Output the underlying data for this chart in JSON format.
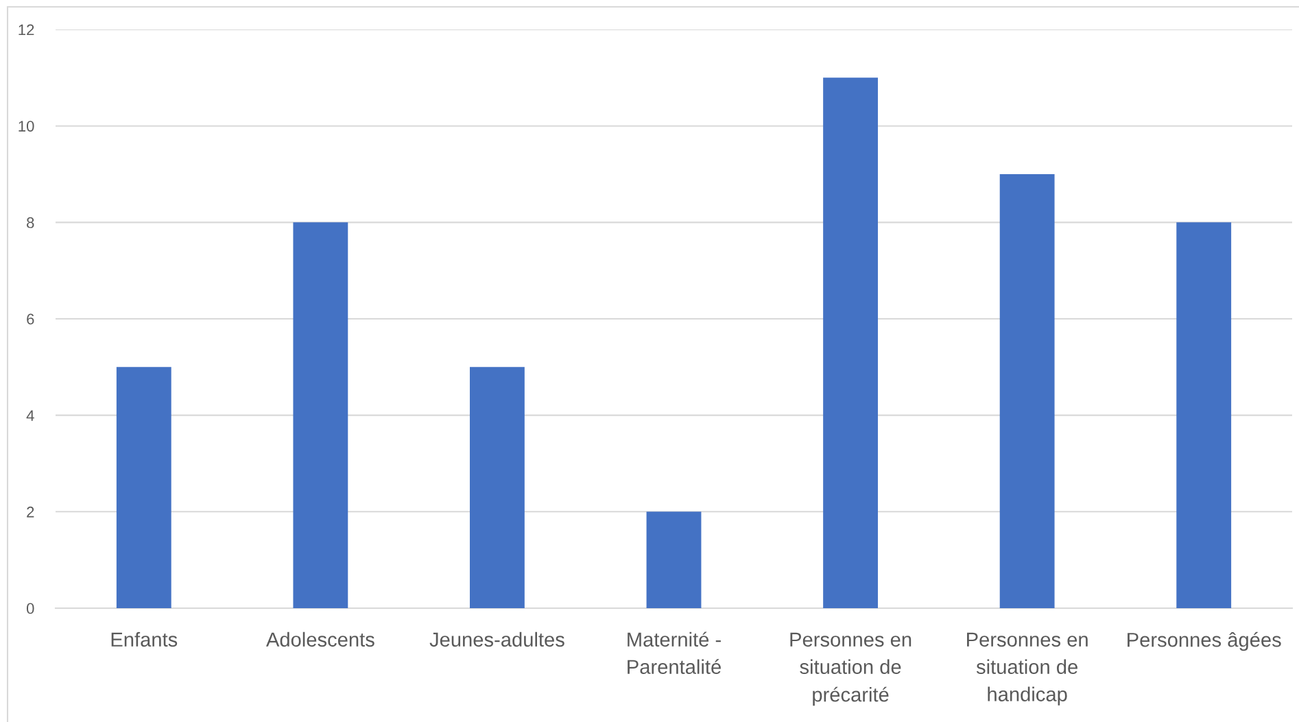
{
  "chart_data": {
    "type": "bar",
    "categories": [
      "Enfants",
      "Adolescents",
      "Jeunes-adultes",
      "Maternité -\nParentalité",
      "Personnes en\nsituation de\nprécarité",
      "Personnes en\nsituation de\nhandicap",
      "Personnes âgées"
    ],
    "values": [
      5,
      8,
      5,
      2,
      11,
      9,
      8
    ],
    "color": "#4472c4",
    "ylim": [
      0,
      12
    ],
    "yticks": [
      0,
      2,
      4,
      6,
      8,
      10,
      12
    ],
    "grid": "y"
  }
}
